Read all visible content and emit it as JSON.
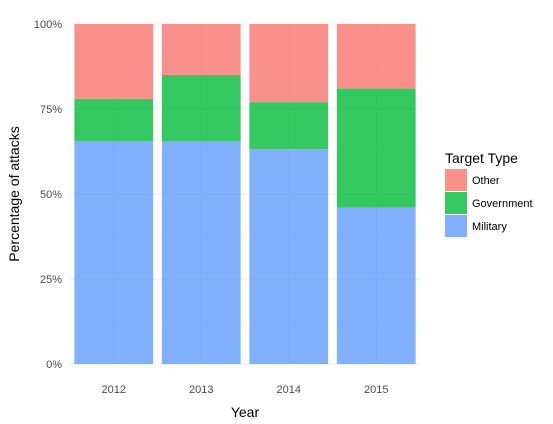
{
  "chart_data": {
    "type": "bar",
    "stacked": true,
    "percent": true,
    "categories": [
      "2012",
      "2013",
      "2014",
      "2015"
    ],
    "series": [
      {
        "name": "Military",
        "color": "#619CFF",
        "values": [
          65.5,
          65.5,
          63.2,
          46.0
        ]
      },
      {
        "name": "Government",
        "color": "#00BA38",
        "values": [
          12.5,
          19.5,
          13.8,
          35.0
        ]
      },
      {
        "name": "Other",
        "color": "#F8766D",
        "values": [
          22.0,
          15.0,
          23.0,
          19.0
        ]
      }
    ],
    "xlabel": "Year",
    "ylabel": "Percentage of attacks",
    "ylim": [
      0,
      100
    ],
    "yticks": [
      "0%",
      "25%",
      "50%",
      "75%",
      "100%"
    ],
    "legend_title": "Target Type",
    "legend_order": [
      "Other",
      "Government",
      "Military"
    ],
    "legend_position": "right",
    "grid": true
  }
}
